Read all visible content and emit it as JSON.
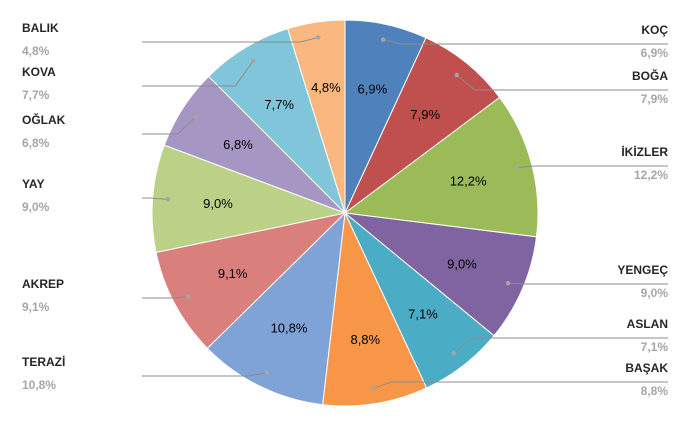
{
  "chart_data": {
    "type": "pie",
    "title": "",
    "start_angle_deg": 0,
    "direction": "clockwise",
    "slices": [
      {
        "label": "KOÇ",
        "value": 6.9,
        "value_text": "6,9%",
        "color": "#4f81bd"
      },
      {
        "label": "BOĞA",
        "value": 7.9,
        "value_text": "7,9%",
        "color": "#c0504d"
      },
      {
        "label": "İKİZLER",
        "value": 12.2,
        "value_text": "12,2%",
        "color": "#9bbb59"
      },
      {
        "label": "YENGEÇ",
        "value": 9.0,
        "value_text": "9,0%",
        "color": "#8064a2"
      },
      {
        "label": "ASLAN",
        "value": 7.1,
        "value_text": "7,1%",
        "color": "#4bacc6"
      },
      {
        "label": "BAŞAK",
        "value": 8.8,
        "value_text": "8,8%",
        "color": "#f79646"
      },
      {
        "label": "TERAZİ",
        "value": 10.8,
        "value_text": "10,8%",
        "color": "#7fa3d6"
      },
      {
        "label": "AKREP",
        "value": 9.1,
        "value_text": "9,1%",
        "color": "#d9807d"
      },
      {
        "label": "YAY",
        "value": 9.0,
        "value_text": "9,0%",
        "color": "#bbd187"
      },
      {
        "label": "OĞLAK",
        "value": 6.8,
        "value_text": "6,8%",
        "color": "#a696c3"
      },
      {
        "label": "KOVA",
        "value": 7.7,
        "value_text": "7,7%",
        "color": "#80c5d9"
      },
      {
        "label": "BALIK",
        "value": 4.8,
        "value_text": "4,8%",
        "color": "#fab880"
      }
    ]
  }
}
